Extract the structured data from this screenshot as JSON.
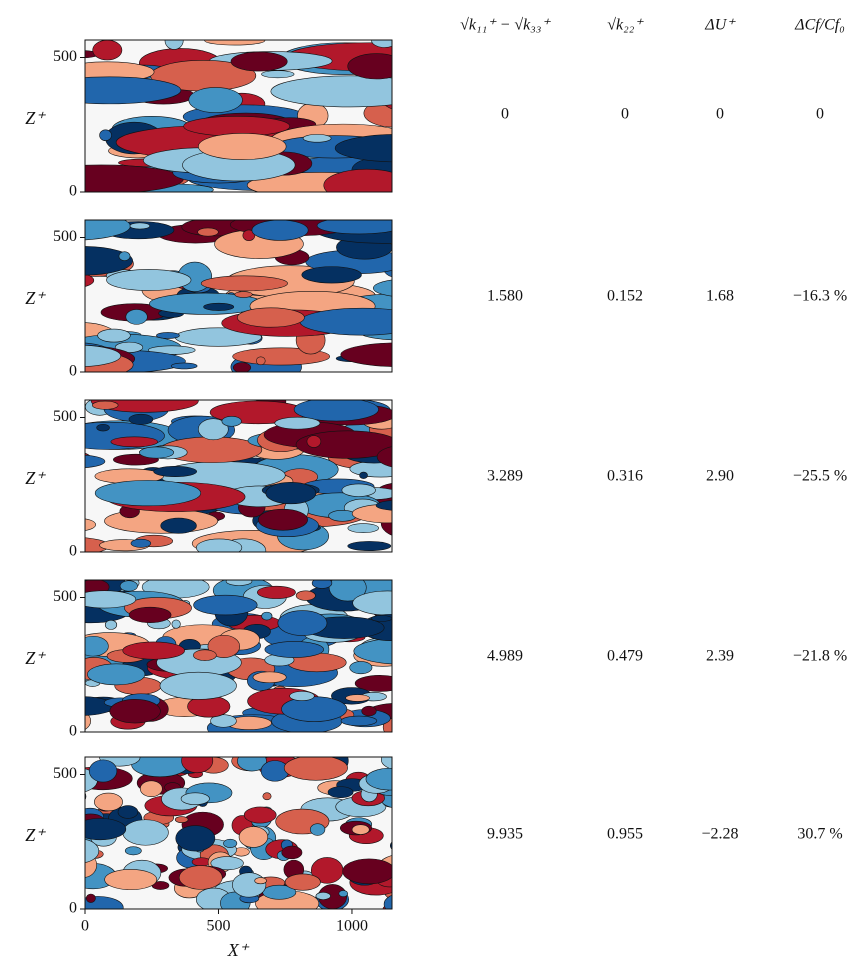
{
  "axes": {
    "ylabel": "Z⁺",
    "xlabel": "X⁺",
    "xlim": [
      0,
      1150
    ],
    "ylim": [
      0,
      565
    ],
    "xticks": [
      0,
      500,
      1000
    ],
    "yticks": [
      0,
      500
    ]
  },
  "table": {
    "headers": [
      "√k₁₁⁺ − √k₃₃⁺",
      "√k₂₂⁺",
      "ΔU⁺",
      "ΔCf/Cf₀"
    ],
    "rows": [
      [
        "0",
        "0",
        "0",
        "0"
      ],
      [
        "1.580",
        "0.152",
        "1.68",
        "−16.3 %"
      ],
      [
        "3.289",
        "0.316",
        "2.90",
        "−25.5 %"
      ],
      [
        "4.989",
        "0.479",
        "2.39",
        "−21.8 %"
      ],
      [
        "9.935",
        "0.955",
        "−2.28",
        "30.7 %"
      ]
    ]
  }
}
